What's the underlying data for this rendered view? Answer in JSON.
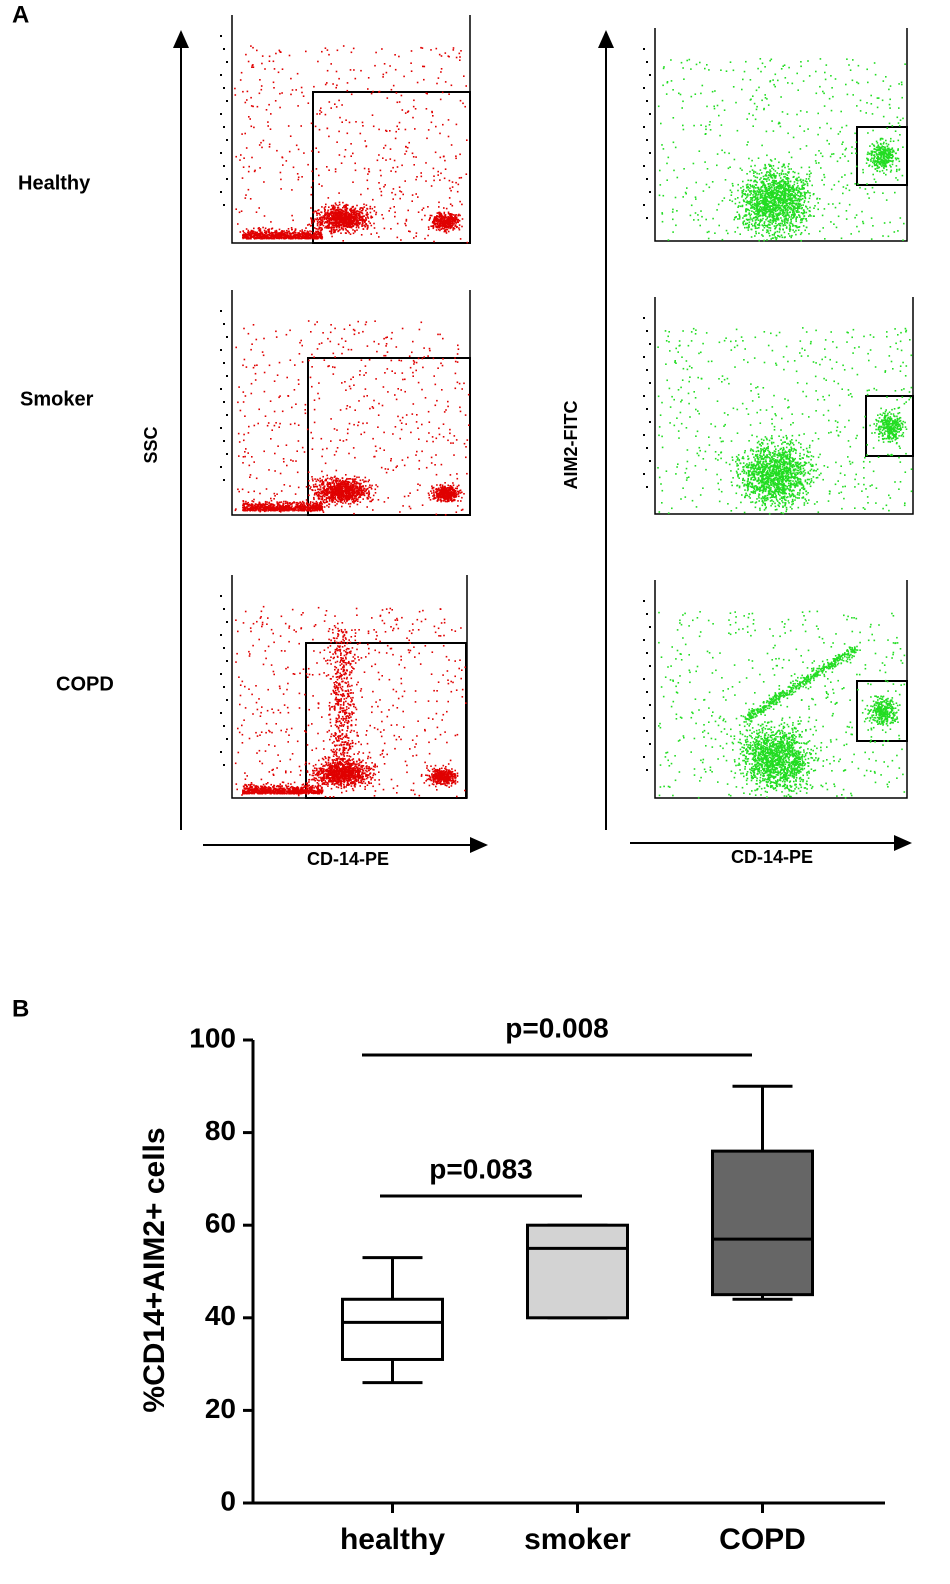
{
  "panel_a": {
    "label": "A",
    "rows": [
      "Healthy",
      "Smoker",
      "COPD"
    ],
    "left_y_axis": "SSC",
    "right_y_axis": "AIM2-FITC",
    "x_axis_left": "CD-14-PE",
    "x_axis_right": "CD-14-PE"
  },
  "chart_data": {
    "type": "box",
    "label": "B",
    "ylabel": "%CD14+AIM2+ cells",
    "categories": [
      "healthy",
      "smoker",
      "COPD"
    ],
    "boxes": [
      {
        "min": 26,
        "q1": 31,
        "median": 39,
        "q3": 44,
        "max": 53,
        "color": "#ffffff"
      },
      {
        "min": 40,
        "q1": 40,
        "median": 55,
        "q3": 60,
        "max": 60,
        "color": "#d3d3d3"
      },
      {
        "min": 44,
        "q1": 45,
        "median": 57,
        "q3": 76,
        "max": 90,
        "color": "#666666"
      }
    ],
    "ylim": [
      0,
      100
    ],
    "yticks": [
      0,
      20,
      40,
      60,
      80,
      100
    ],
    "annotations": [
      "p=0.083",
      "p=0.008"
    ]
  }
}
